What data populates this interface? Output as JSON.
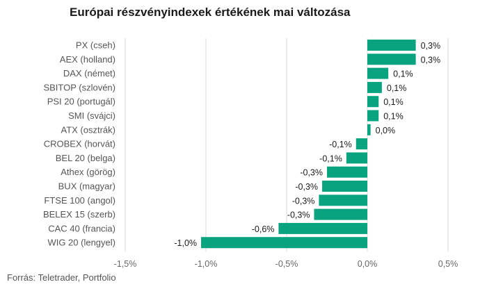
{
  "title": "Európai részvényindexek értékének mai változása",
  "source": "Forrás: Teletrader, Portfolio",
  "colors": {
    "bar": "#0aa37f",
    "grid": "#d9d9d9",
    "text": "#555555"
  },
  "chart_data": {
    "type": "bar",
    "orientation": "horizontal",
    "title": "Európai részvényindexek értékének mai változása",
    "xlim": [
      -1.5,
      0.5
    ],
    "grid": true,
    "xticks": [
      {
        "value": -1.5,
        "label": "-1,5%"
      },
      {
        "value": -1.0,
        "label": "-1,0%"
      },
      {
        "value": -0.5,
        "label": "-0,5%"
      },
      {
        "value": 0.0,
        "label": "0,0%"
      },
      {
        "value": 0.5,
        "label": "0,5%"
      }
    ],
    "categories": [
      "PX (cseh)",
      "AEX (holland)",
      "DAX (német)",
      "SBITOP (szlovén)",
      "PSI 20 (portugál)",
      "SMI (svájci)",
      "ATX (osztrák)",
      "CROBEX (horvát)",
      "BEL 20 (belga)",
      "Athex (görög)",
      "BUX (magyar)",
      "FTSE 100 (angol)",
      "BELEX 15 (szerb)",
      "CAC 40 (francia)",
      "WIG 20 (lengyel)"
    ],
    "values": [
      0.3,
      0.3,
      0.13,
      0.09,
      0.07,
      0.07,
      0.02,
      -0.07,
      -0.13,
      -0.25,
      -0.28,
      -0.3,
      -0.33,
      -0.55,
      -1.03
    ],
    "labels": [
      "0,3%",
      "0,3%",
      "0,1%",
      "0,1%",
      "0,1%",
      "0,1%",
      "0,0%",
      "-0,1%",
      "-0,1%",
      "-0,3%",
      "-0,3%",
      "-0,3%",
      "-0,3%",
      "-0,6%",
      "-1,0%"
    ]
  }
}
